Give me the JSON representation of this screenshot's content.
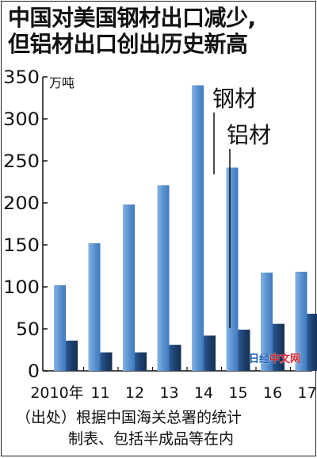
{
  "title": {
    "line1": "中国对美国钢材出口减少,",
    "line2": "但铝材出口创出历史新高"
  },
  "source": {
    "line1": "（出处）根据中国海关总署的统计",
    "line2": "制表、包括半成品等在内"
  },
  "watermark": {
    "part1": "日经",
    "part2": "中文网"
  },
  "chart_data": {
    "type": "bar",
    "unit": "万吨",
    "categories": [
      "2010年",
      "11",
      "12",
      "13",
      "14",
      "15",
      "16",
      "17"
    ],
    "series": [
      {
        "name": "钢材",
        "values": [
          102,
          152,
          198,
          221,
          340,
          242,
          117,
          118
        ],
        "color": "#5b92cf"
      },
      {
        "name": "铝材",
        "values": [
          36,
          22,
          22,
          31,
          42,
          49,
          56,
          68
        ],
        "color": "#1c3f6e"
      }
    ],
    "ylim": [
      0,
      350
    ],
    "yticks": [
      0,
      50,
      100,
      150,
      200,
      250,
      300,
      350
    ],
    "grid": false
  }
}
